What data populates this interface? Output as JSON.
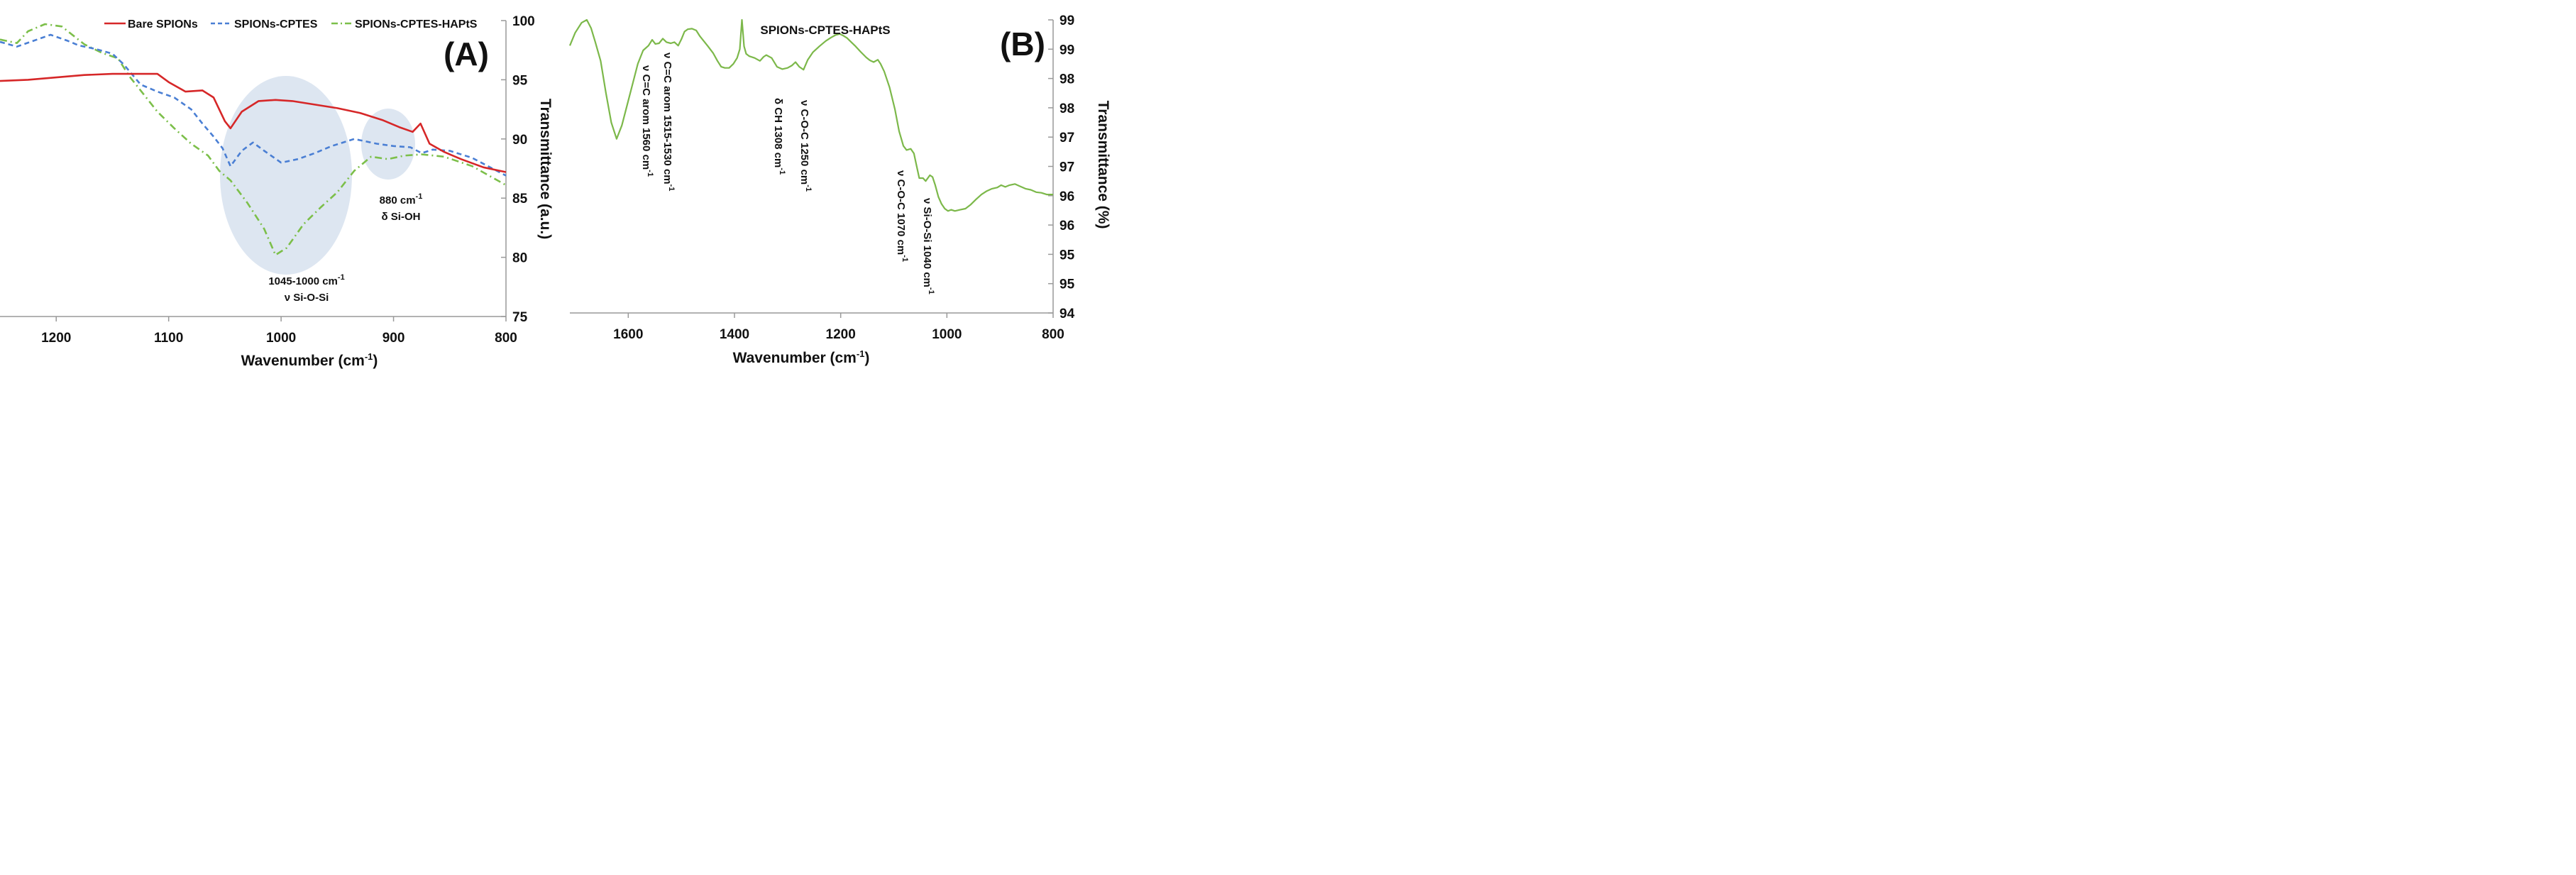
{
  "chart_data": [
    {
      "panel": "A",
      "panel_label": "(A)",
      "type": "line",
      "xlabel_main": "Wavenumber (cm",
      "xlabel_sup": "-1",
      "xlabel_end": ")",
      "ylabel": "Transmittance (a.u.)",
      "xlim": [
        1250,
        800
      ],
      "ylim": [
        75,
        100
      ],
      "x_ticks": [
        "1200",
        "1100",
        "1000",
        "900",
        "800"
      ],
      "y_ticks": [
        "75",
        "80",
        "85",
        "90",
        "95",
        "100"
      ],
      "legend_position": "top",
      "series": [
        {
          "name": "Bare SPIONs",
          "color": "#d62728",
          "style": "solid",
          "points": [
            [
              1250,
              94.9
            ],
            [
              1225,
              95.0
            ],
            [
              1200,
              95.2
            ],
            [
              1175,
              95.4
            ],
            [
              1150,
              95.5
            ],
            [
              1125,
              95.5
            ],
            [
              1110,
              95.5
            ],
            [
              1100,
              94.8
            ],
            [
              1085,
              94.0
            ],
            [
              1070,
              94.1
            ],
            [
              1060,
              93.5
            ],
            [
              1050,
              91.5
            ],
            [
              1045,
              90.9
            ],
            [
              1035,
              92.3
            ],
            [
              1020,
              93.2
            ],
            [
              1005,
              93.3
            ],
            [
              990,
              93.2
            ],
            [
              970,
              92.9
            ],
            [
              950,
              92.6
            ],
            [
              930,
              92.2
            ],
            [
              910,
              91.6
            ],
            [
              895,
              91.0
            ],
            [
              883,
              90.6
            ],
            [
              876,
              91.3
            ],
            [
              868,
              89.6
            ],
            [
              855,
              88.9
            ],
            [
              840,
              88.3
            ],
            [
              820,
              87.6
            ],
            [
              800,
              87.2
            ]
          ]
        },
        {
          "name": "SPIONs-CPTES",
          "color": "#4a7fd4",
          "style": "dashed",
          "points": [
            [
              1250,
              98.2
            ],
            [
              1235,
              97.8
            ],
            [
              1220,
              98.3
            ],
            [
              1205,
              98.8
            ],
            [
              1190,
              98.3
            ],
            [
              1180,
              97.9
            ],
            [
              1165,
              97.6
            ],
            [
              1150,
              97.2
            ],
            [
              1140,
              96.3
            ],
            [
              1125,
              94.6
            ],
            [
              1110,
              94.0
            ],
            [
              1095,
              93.5
            ],
            [
              1080,
              92.5
            ],
            [
              1070,
              91.3
            ],
            [
              1060,
              90.2
            ],
            [
              1052,
              89.2
            ],
            [
              1045,
              87.7
            ],
            [
              1035,
              89.0
            ],
            [
              1025,
              89.7
            ],
            [
              1015,
              89.0
            ],
            [
              1000,
              88.0
            ],
            [
              985,
              88.3
            ],
            [
              970,
              88.8
            ],
            [
              955,
              89.4
            ],
            [
              935,
              90.0
            ],
            [
              915,
              89.6
            ],
            [
              900,
              89.4
            ],
            [
              885,
              89.3
            ],
            [
              875,
              88.8
            ],
            [
              865,
              89.1
            ],
            [
              850,
              89.0
            ],
            [
              830,
              88.4
            ],
            [
              800,
              86.9
            ]
          ]
        },
        {
          "name": "SPIONs-CPTES-HAPtS",
          "color": "#7cbf4a",
          "style": "dashdot",
          "points": [
            [
              1250,
              98.4
            ],
            [
              1235,
              98.1
            ],
            [
              1225,
              99.1
            ],
            [
              1210,
              99.7
            ],
            [
              1195,
              99.5
            ],
            [
              1175,
              98.0
            ],
            [
              1160,
              97.3
            ],
            [
              1145,
              96.8
            ],
            [
              1135,
              95.3
            ],
            [
              1125,
              94.1
            ],
            [
              1110,
              92.3
            ],
            [
              1095,
              90.9
            ],
            [
              1080,
              89.6
            ],
            [
              1065,
              88.6
            ],
            [
              1055,
              87.3
            ],
            [
              1045,
              86.5
            ],
            [
              1030,
              84.6
            ],
            [
              1015,
              82.4
            ],
            [
              1005,
              80.2
            ],
            [
              995,
              80.8
            ],
            [
              980,
              82.8
            ],
            [
              965,
              84.2
            ],
            [
              950,
              85.5
            ],
            [
              935,
              87.3
            ],
            [
              920,
              88.5
            ],
            [
              905,
              88.3
            ],
            [
              890,
              88.6
            ],
            [
              875,
              88.7
            ],
            [
              855,
              88.5
            ],
            [
              830,
              87.7
            ],
            [
              800,
              86.1
            ]
          ]
        }
      ],
      "annotations": [
        {
          "line1_main": "1045-1000 cm",
          "line1_sup": "-1",
          "line2": "ν Si-O-Si"
        },
        {
          "line1_main": "880 cm",
          "line1_sup": "-1",
          "line2": "δ Si-OH"
        }
      ]
    },
    {
      "panel": "B",
      "panel_label": "(B)",
      "type": "line",
      "title": "SPIONs-CPTES-HAPtS",
      "xlabel_main": "Wavenumber (cm",
      "xlabel_sup": "-1",
      "xlabel_end": ")",
      "ylabel": "Transmittance (%)",
      "xlim": [
        1710,
        800
      ],
      "ylim": [
        94,
        99
      ],
      "x_ticks": [
        "1600",
        "1400",
        "1200",
        "1000",
        "800"
      ],
      "y_tick_labels": [
        "94",
        "95",
        "95",
        "96",
        "96",
        "97",
        "97",
        "98",
        "98",
        "99",
        "99"
      ],
      "series": [
        {
          "name": "SPIONs-CPTES-HAPtS",
          "color": "#7cb84a",
          "style": "solid",
          "points": [
            [
              1710,
              98.56
            ],
            [
              1700,
              98.78
            ],
            [
              1688,
              98.95
            ],
            [
              1678,
              99.0
            ],
            [
              1670,
              98.86
            ],
            [
              1662,
              98.62
            ],
            [
              1652,
              98.3
            ],
            [
              1642,
              97.75
            ],
            [
              1632,
              97.25
            ],
            [
              1622,
              96.97
            ],
            [
              1612,
              97.2
            ],
            [
              1602,
              97.55
            ],
            [
              1592,
              97.9
            ],
            [
              1582,
              98.25
            ],
            [
              1572,
              98.48
            ],
            [
              1562,
              98.56
            ],
            [
              1555,
              98.66
            ],
            [
              1549,
              98.59
            ],
            [
              1542,
              98.6
            ],
            [
              1535,
              98.68
            ],
            [
              1528,
              98.62
            ],
            [
              1520,
              98.6
            ],
            [
              1513,
              98.62
            ],
            [
              1506,
              98.56
            ],
            [
              1500,
              98.67
            ],
            [
              1494,
              98.8
            ],
            [
              1488,
              98.84
            ],
            [
              1480,
              98.85
            ],
            [
              1472,
              98.82
            ],
            [
              1465,
              98.72
            ],
            [
              1458,
              98.64
            ],
            [
              1450,
              98.55
            ],
            [
              1440,
              98.43
            ],
            [
              1432,
              98.3
            ],
            [
              1425,
              98.2
            ],
            [
              1418,
              98.18
            ],
            [
              1410,
              98.18
            ],
            [
              1402,
              98.25
            ],
            [
              1395,
              98.35
            ],
            [
              1390,
              98.5
            ],
            [
              1386,
              99.0
            ],
            [
              1382,
              98.55
            ],
            [
              1378,
              98.42
            ],
            [
              1372,
              98.38
            ],
            [
              1362,
              98.35
            ],
            [
              1352,
              98.3
            ],
            [
              1345,
              98.37
            ],
            [
              1340,
              98.4
            ],
            [
              1330,
              98.35
            ],
            [
              1320,
              98.2
            ],
            [
              1310,
              98.16
            ],
            [
              1300,
              98.18
            ],
            [
              1292,
              98.22
            ],
            [
              1285,
              98.28
            ],
            [
              1278,
              98.2
            ],
            [
              1270,
              98.15
            ],
            [
              1262,
              98.32
            ],
            [
              1252,
              98.45
            ],
            [
              1240,
              98.55
            ],
            [
              1228,
              98.64
            ],
            [
              1218,
              98.7
            ],
            [
              1210,
              98.74
            ],
            [
              1202,
              98.76
            ],
            [
              1195,
              98.73
            ],
            [
              1188,
              98.69
            ],
            [
              1180,
              98.62
            ],
            [
              1172,
              98.55
            ],
            [
              1162,
              98.45
            ],
            [
              1152,
              98.36
            ],
            [
              1145,
              98.31
            ],
            [
              1138,
              98.28
            ],
            [
              1130,
              98.32
            ],
            [
              1125,
              98.25
            ],
            [
              1118,
              98.12
            ],
            [
              1108,
              97.85
            ],
            [
              1098,
              97.48
            ],
            [
              1090,
              97.1
            ],
            [
              1082,
              96.85
            ],
            [
              1076,
              96.78
            ],
            [
              1068,
              96.8
            ],
            [
              1062,
              96.72
            ],
            [
              1058,
              96.55
            ],
            [
              1052,
              96.3
            ],
            [
              1045,
              96.3
            ],
            [
              1040,
              96.25
            ],
            [
              1032,
              96.35
            ],
            [
              1027,
              96.32
            ],
            [
              1022,
              96.18
            ],
            [
              1016,
              95.98
            ],
            [
              1010,
              95.86
            ],
            [
              1004,
              95.78
            ],
            [
              998,
              95.74
            ],
            [
              992,
              95.76
            ],
            [
              985,
              95.74
            ],
            [
              975,
              95.76
            ],
            [
              965,
              95.78
            ],
            [
              955,
              95.85
            ],
            [
              945,
              95.94
            ],
            [
              935,
              96.02
            ],
            [
              925,
              96.08
            ],
            [
              915,
              96.12
            ],
            [
              905,
              96.14
            ],
            [
              898,
              96.18
            ],
            [
              890,
              96.15
            ],
            [
              882,
              96.18
            ],
            [
              872,
              96.2
            ],
            [
              862,
              96.16
            ],
            [
              852,
              96.12
            ],
            [
              842,
              96.1
            ],
            [
              832,
              96.06
            ],
            [
              822,
              96.05
            ],
            [
              812,
              96.02
            ],
            [
              800,
              96.02
            ]
          ]
        }
      ],
      "annotations": [
        {
          "main": "ν C=C arom 1560 cm",
          "sup": "-1"
        },
        {
          "main": "ν C=C arom 1515-1530 cm",
          "sup": "-1"
        },
        {
          "main": "δ CH 1308 cm",
          "sup": "-1"
        },
        {
          "main": "ν C-O-C 1250 cm",
          "sup": "-1"
        },
        {
          "main": "ν C-O-C 1070 cm",
          "sup": "-1"
        },
        {
          "main": "ν Si-O-Si 1040 cm",
          "sup": "-1"
        }
      ]
    }
  ]
}
